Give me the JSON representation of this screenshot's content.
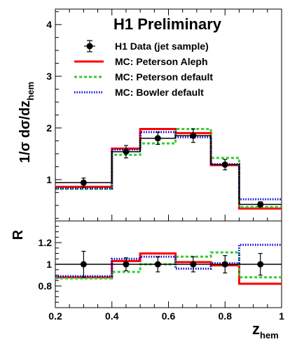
{
  "chart_data": {
    "type": "line",
    "title": "H1 Preliminary",
    "xlabel_main": "z",
    "xlabel_sub": "hem",
    "ylabel_upper": "1/σ dσ/dz",
    "ylabel_upper_sub": "hem",
    "ylabel_lower": "R",
    "x_bin_edges": [
      0.2,
      0.4,
      0.5,
      0.625,
      0.75,
      0.85,
      1.0
    ],
    "x_ticks": [
      0.2,
      0.4,
      0.6,
      0.8,
      1.0
    ],
    "x_tick_labels": [
      "0.2",
      "0.4",
      "0.6",
      "0.8",
      "1"
    ],
    "upper": {
      "ylim": [
        0.2,
        4.3
      ],
      "y_ticks": [
        1,
        2,
        3,
        4
      ],
      "y_tick_labels": [
        "1",
        "2",
        "3",
        "4"
      ],
      "data_x": [
        0.3,
        0.45,
        0.5625,
        0.6875,
        0.8,
        0.925
      ],
      "data_y": [
        0.94,
        1.54,
        1.8,
        1.85,
        1.29,
        0.52
      ],
      "data_yerr": [
        0.09,
        0.12,
        0.12,
        0.13,
        0.1,
        0.05
      ],
      "series": [
        {
          "name": "MC: Peterson Aleph",
          "color": "#ff0000",
          "dash": "solid",
          "values": [
            0.86,
            1.6,
            1.98,
            1.9,
            1.28,
            0.44
          ]
        },
        {
          "name": "MC: Peterson default",
          "color": "#33cc33",
          "dash": "dashed",
          "values": [
            0.82,
            1.48,
            1.7,
            1.98,
            1.42,
            0.47
          ]
        },
        {
          "name": "MC: Bowler default",
          "color": "#0000cc",
          "dash": "dotted",
          "values": [
            0.83,
            1.58,
            1.92,
            1.82,
            1.3,
            0.62
          ]
        }
      ],
      "data_series_name": "H1 Data (jet sample)"
    },
    "lower": {
      "ylim": [
        0.6,
        1.4
      ],
      "y_ticks": [
        0.8,
        1.0,
        1.2
      ],
      "y_tick_labels": [
        "0.8",
        "1",
        "1.2"
      ],
      "reference": 1.0,
      "data_y": [
        1.0,
        1.0,
        1.0,
        1.0,
        1.0,
        1.0
      ],
      "data_yerr": [
        0.12,
        0.06,
        0.07,
        0.07,
        0.08,
        0.1
      ],
      "series": [
        {
          "name": "MC: Peterson Aleph",
          "color": "#ff0000",
          "dash": "solid",
          "values": [
            0.88,
            1.03,
            1.1,
            1.02,
            0.99,
            0.82
          ]
        },
        {
          "name": "MC: Peterson default",
          "color": "#33cc33",
          "dash": "dashed",
          "values": [
            0.87,
            0.93,
            1.0,
            1.07,
            1.11,
            0.88
          ]
        },
        {
          "name": "MC: Bowler default",
          "color": "#0000cc",
          "dash": "dotted",
          "values": [
            0.89,
            1.05,
            1.07,
            0.96,
            1.01,
            1.18
          ]
        }
      ]
    },
    "legend_placement": "top-center"
  }
}
